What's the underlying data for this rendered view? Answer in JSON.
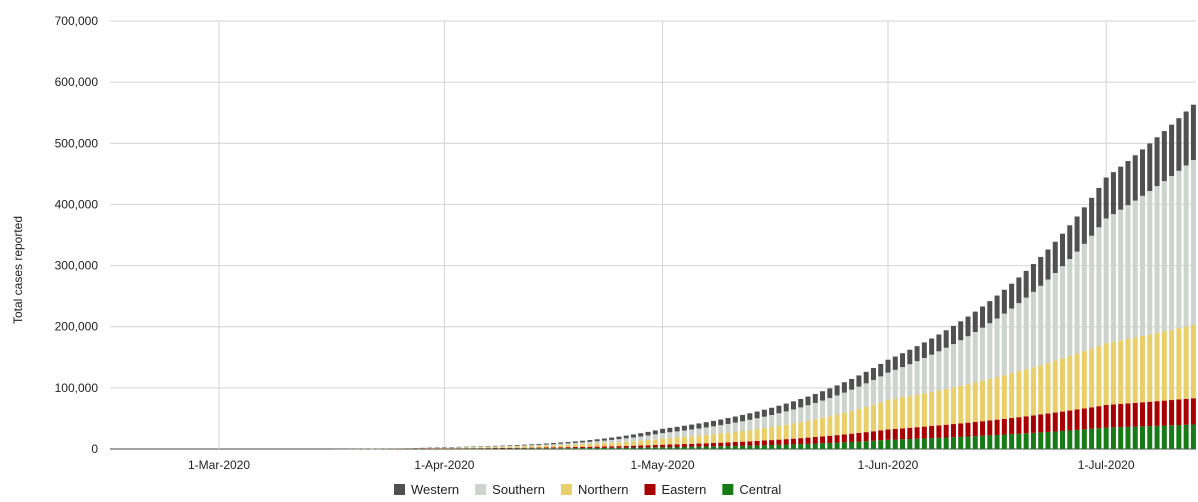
{
  "chart_data": {
    "type": "bar",
    "stacked": true,
    "title": "",
    "xlabel": "",
    "ylabel": "Total cases reported",
    "ylim": [
      0,
      700000
    ],
    "yticks": [
      "0",
      "100,000",
      "200,000",
      "300,000",
      "400,000",
      "500,000",
      "600,000",
      "700,000"
    ],
    "xticks": [
      "1-Mar-2020",
      "1-Apr-2020",
      "1-May-2020",
      "1-Jun-2020",
      "1-Jul-2020"
    ],
    "x_start": "2020-03-16",
    "x_end": "2020-07-17",
    "grid": true,
    "legend_position": "bottom",
    "series": [
      {
        "name": "Central",
        "color": "#167a16",
        "points": [
          [
            "2020-03-16",
            0
          ],
          [
            "2020-04-01",
            500
          ],
          [
            "2020-05-01",
            3000
          ],
          [
            "2020-06-01",
            15000
          ],
          [
            "2020-07-01",
            35000
          ],
          [
            "2020-07-17",
            42000
          ]
        ]
      },
      {
        "name": "Eastern",
        "color": "#a80000",
        "points": [
          [
            "2020-03-16",
            0
          ],
          [
            "2020-04-01",
            500
          ],
          [
            "2020-05-01",
            4000
          ],
          [
            "2020-06-01",
            17000
          ],
          [
            "2020-07-01",
            37000
          ],
          [
            "2020-07-17",
            45000
          ]
        ]
      },
      {
        "name": "Northern",
        "color": "#e8cf6a",
        "points": [
          [
            "2020-03-16",
            0
          ],
          [
            "2020-04-01",
            1000
          ],
          [
            "2020-05-01",
            10000
          ],
          [
            "2020-06-01",
            48000
          ],
          [
            "2020-07-01",
            101000
          ],
          [
            "2020-07-17",
            127000
          ]
        ]
      },
      {
        "name": "Southern",
        "color": "#cdd4cd",
        "points": [
          [
            "2020-03-16",
            0
          ],
          [
            "2020-04-01",
            500
          ],
          [
            "2020-05-01",
            9000
          ],
          [
            "2020-06-01",
            45000
          ],
          [
            "2020-07-01",
            204000
          ],
          [
            "2020-07-17",
            296000
          ]
        ]
      },
      {
        "name": "Western",
        "color": "#505050",
        "points": [
          [
            "2020-03-16",
            0
          ],
          [
            "2020-04-01",
            500
          ],
          [
            "2020-05-01",
            7000
          ],
          [
            "2020-06-01",
            21000
          ],
          [
            "2020-07-01",
            67000
          ],
          [
            "2020-07-17",
            100000
          ]
        ]
      }
    ],
    "legend_order": [
      "Western",
      "Southern",
      "Northern",
      "Eastern",
      "Central"
    ]
  }
}
